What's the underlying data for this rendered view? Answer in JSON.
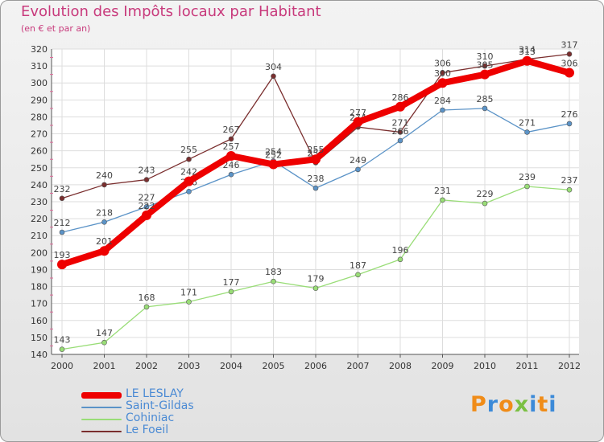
{
  "header": {
    "title": "Evolution des Impôts locaux par Habitant",
    "subtitle": "(en € et par an)"
  },
  "logo": {
    "letters": [
      "P",
      "r",
      "o",
      "x",
      "i",
      "t",
      "i"
    ],
    "colors": [
      "#f08c18",
      "#3c8ad8",
      "#f08c18",
      "#7bc043",
      "#3c8ad8",
      "#f08c18",
      "#3c8ad8"
    ]
  },
  "chart_data": {
    "type": "line",
    "title": "Evolution des Impôts locaux par Habitant",
    "subtitle": "(en € et par an)",
    "xlabel": "",
    "ylabel": "",
    "x": [
      "2000",
      "2001",
      "2002",
      "2003",
      "2004",
      "2005",
      "2006",
      "2007",
      "2008",
      "2009",
      "2010",
      "2011",
      "2012"
    ],
    "ylim": [
      140,
      320
    ],
    "yticks": [
      140,
      150,
      160,
      170,
      180,
      190,
      200,
      210,
      220,
      230,
      240,
      250,
      260,
      270,
      280,
      290,
      300,
      310,
      320
    ],
    "grid": true,
    "legend": "bottom-left",
    "series": [
      {
        "name": "LE LESLAY",
        "color": "#ee0000",
        "values": [
          193,
          201,
          222,
          242,
          257,
          252,
          255,
          277,
          286,
          300,
          305,
          313,
          306
        ]
      },
      {
        "name": "Saint-Gildas",
        "color": "#5b93c7",
        "values": [
          212,
          218,
          227,
          236,
          246,
          254,
          238,
          249,
          266,
          284,
          285,
          271,
          276
        ]
      },
      {
        "name": "Cohiniac",
        "color": "#99dd77",
        "values": [
          143,
          147,
          168,
          171,
          177,
          183,
          179,
          187,
          196,
          231,
          229,
          239,
          237
        ]
      },
      {
        "name": "Le Foeil",
        "color": "#7a2e2e",
        "values": [
          232,
          240,
          243,
          255,
          267,
          304,
          253,
          274,
          271,
          306,
          310,
          314,
          317
        ]
      }
    ]
  }
}
